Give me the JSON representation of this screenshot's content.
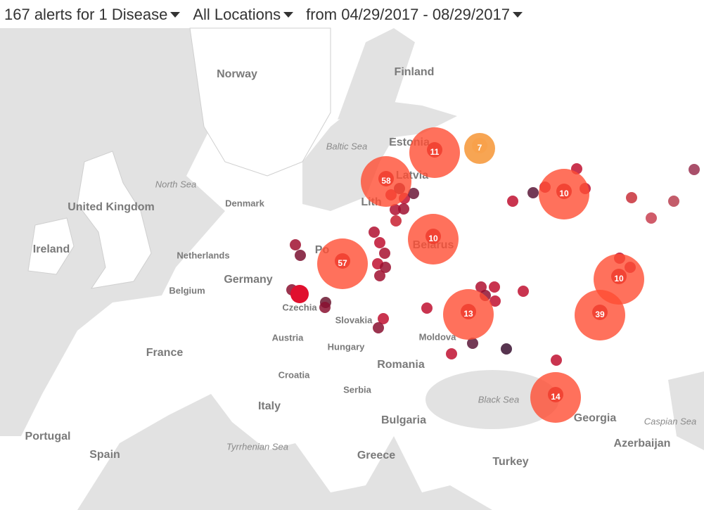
{
  "header": {
    "alerts": "167 alerts for 1 Disease",
    "location": "All Locations",
    "date_range": "from 04/29/2017 - 08/29/2017"
  },
  "countries": [
    "Norway",
    "Finland",
    "Estonia",
    "Latvia",
    "Lith",
    "Belarus",
    "Po",
    "United Kingdom",
    "Ireland",
    "Denmark",
    "Netherlands",
    "Germany",
    "Belgium",
    "Czechia",
    "Slovakia",
    "Austria",
    "Hungary",
    "Moldova",
    "Romania",
    "France",
    "Croatia",
    "Serbia",
    "Italy",
    "Bulgaria",
    "Portugal",
    "Spain",
    "Greece",
    "Turkey",
    "Georgia",
    "Azerbaijan"
  ],
  "seas": [
    "Baltic Sea",
    "North Sea",
    "Black Sea",
    "Tyrrhenian Sea",
    "Caspian Sea"
  ],
  "clusters": [
    58,
    11,
    7,
    10,
    10,
    57,
    13,
    10,
    39,
    14
  ]
}
